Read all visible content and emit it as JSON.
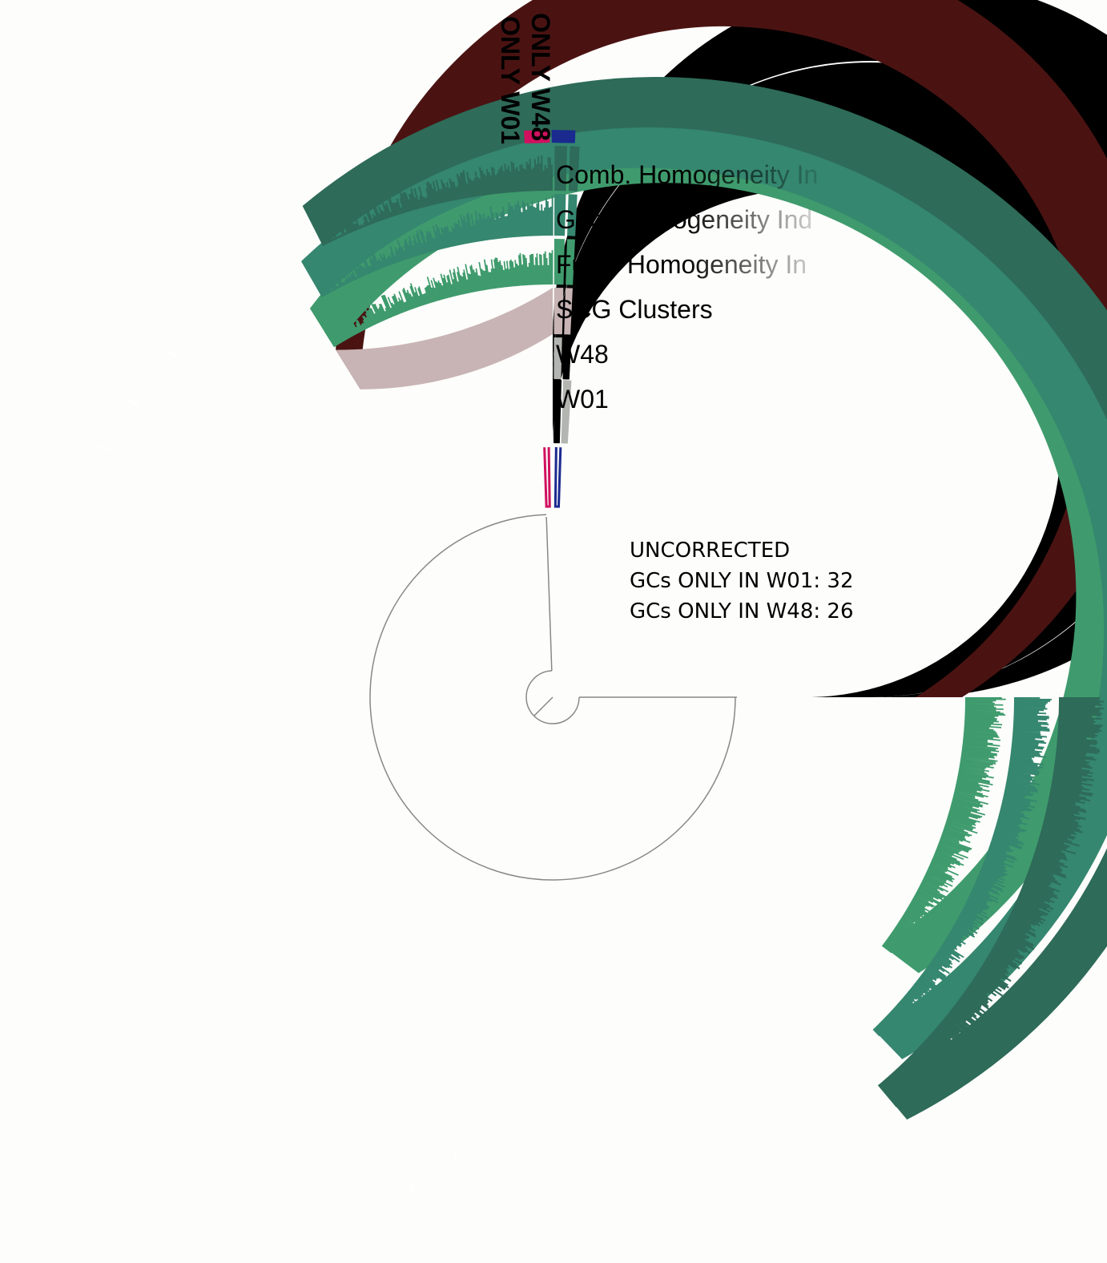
{
  "layers": [
    {
      "key": "comb",
      "name": "Comb. Homogeneity In",
      "color": "#2e6b59",
      "label_color": "#2e6b59",
      "fade": true
    },
    {
      "key": "geo",
      "name": "Geo. Homogeneity Ind",
      "color": "#35876f",
      "label_color": "#35876f",
      "fade": true
    },
    {
      "key": "func",
      "name": "Func. Homogeneity In",
      "color": "#3f9b6d",
      "label_color": "#3f9b6d",
      "fade": true
    },
    {
      "key": "scg",
      "name": "SCG Clusters",
      "color": "#4a1312",
      "label_color": "#4a1312",
      "fade": false
    },
    {
      "key": "w48",
      "name": "W48",
      "color": "#000000",
      "label_color": "#000000",
      "fade": false
    },
    {
      "key": "w01",
      "name": "W01",
      "color": "#000000",
      "label_color": "#000000",
      "fade": false
    }
  ],
  "bins": [
    {
      "name": "ONLY W01",
      "color": "#d0105f"
    },
    {
      "name": "ONLY W48",
      "color": "#1a2a8f"
    }
  ],
  "annotation": {
    "line1": "UNCORRECTED",
    "line2": "GCs ONLY IN W01: 32",
    "line3": "GCs ONLY IN W48: 26",
    "color": "#e8231d"
  },
  "colors": {
    "scg_light": "#c8b4b4",
    "absent_gray": "#b3b5b0",
    "tree_line": "#888888",
    "background": "#fdfdfb"
  }
}
